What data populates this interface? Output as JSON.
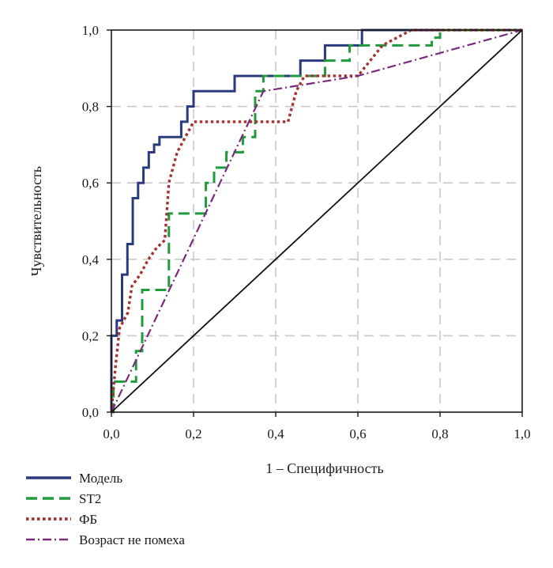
{
  "chart_data": {
    "type": "line",
    "title": "",
    "xlabel": "1 – Специфичность",
    "ylabel": "Чувствительность",
    "xlim": [
      0,
      1
    ],
    "ylim": [
      0,
      1
    ],
    "x_ticks": [
      "0,0",
      "0,2",
      "0,4",
      "0,6",
      "0,8",
      "1,0"
    ],
    "y_ticks": [
      "0,0",
      "0,2",
      "0,4",
      "0,6",
      "0,8",
      "1,0"
    ],
    "grid": true,
    "legend_position": "bottom-left",
    "series": [
      {
        "name": "Модель",
        "color": "#2a3a7c",
        "style": "solid",
        "x": [
          0,
          0,
          0.013,
          0.013,
          0.026,
          0.026,
          0.039,
          0.039,
          0.052,
          0.052,
          0.065,
          0.065,
          0.078,
          0.078,
          0.091,
          0.091,
          0.104,
          0.104,
          0.117,
          0.117,
          0.13,
          0.13,
          0.17,
          0.17,
          0.185,
          0.185,
          0.2,
          0.2,
          0.3,
          0.3,
          0.46,
          0.46,
          0.52,
          0.52,
          0.61,
          0.61,
          1.0
        ],
        "y": [
          0,
          0.2,
          0.2,
          0.24,
          0.24,
          0.36,
          0.36,
          0.44,
          0.44,
          0.56,
          0.56,
          0.6,
          0.6,
          0.64,
          0.64,
          0.68,
          0.68,
          0.7,
          0.7,
          0.72,
          0.72,
          0.72,
          0.72,
          0.76,
          0.76,
          0.8,
          0.8,
          0.84,
          0.84,
          0.88,
          0.88,
          0.92,
          0.92,
          0.96,
          0.96,
          1.0,
          1.0
        ]
      },
      {
        "name": "ST2",
        "color": "#1f9a3c",
        "style": "dashed",
        "x": [
          0,
          0.005,
          0.005,
          0.06,
          0.06,
          0.075,
          0.075,
          0.14,
          0.14,
          0.23,
          0.23,
          0.25,
          0.25,
          0.28,
          0.28,
          0.32,
          0.32,
          0.35,
          0.35,
          0.37,
          0.37,
          0.52,
          0.52,
          0.58,
          0.58,
          0.78,
          0.78,
          0.8,
          0.8,
          1.0
        ],
        "y": [
          0,
          0,
          0.08,
          0.08,
          0.16,
          0.16,
          0.32,
          0.32,
          0.52,
          0.52,
          0.6,
          0.6,
          0.64,
          0.64,
          0.68,
          0.68,
          0.72,
          0.72,
          0.84,
          0.84,
          0.88,
          0.88,
          0.92,
          0.92,
          0.96,
          0.96,
          0.98,
          0.98,
          1.0,
          1.0
        ]
      },
      {
        "name": "ФБ",
        "color": "#a33232",
        "style": "dotted",
        "x": [
          0,
          0.01,
          0.02,
          0.04,
          0.05,
          0.07,
          0.09,
          0.11,
          0.13,
          0.14,
          0.16,
          0.18,
          0.2,
          0.25,
          0.3,
          0.37,
          0.43,
          0.45,
          0.47,
          0.52,
          0.6,
          0.66,
          0.73,
          1.0
        ],
        "y": [
          0,
          0.12,
          0.22,
          0.26,
          0.33,
          0.36,
          0.4,
          0.43,
          0.45,
          0.6,
          0.68,
          0.72,
          0.76,
          0.76,
          0.76,
          0.76,
          0.76,
          0.84,
          0.88,
          0.88,
          0.88,
          0.96,
          1.0,
          1.0
        ]
      },
      {
        "name": "Возраст не помеха",
        "color": "#7a2a7a",
        "style": "dashdot",
        "x": [
          0,
          0.37,
          0.6,
          1.0
        ],
        "y": [
          0,
          0.84,
          0.88,
          1.0
        ]
      },
      {
        "name": "",
        "color": "#111111",
        "style": "solid",
        "x": [
          0,
          1
        ],
        "y": [
          0,
          1
        ]
      }
    ]
  }
}
